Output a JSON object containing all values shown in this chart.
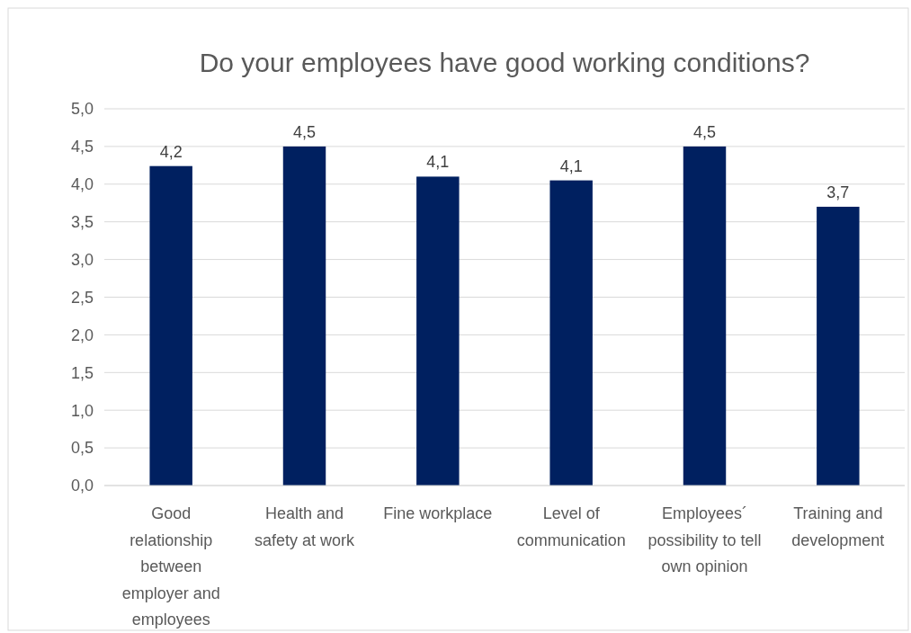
{
  "chart_data": {
    "type": "bar",
    "title": "Do your employees have good working conditions?",
    "categories": [
      "Good relationship between employer and employees",
      "Health and safety at work",
      "Fine workplace",
      "Level of communication",
      "Employees´ possibility to tell own opinion",
      "Training and development"
    ],
    "values": [
      4.24,
      4.5,
      4.1,
      4.05,
      4.5,
      3.7
    ],
    "value_labels": [
      "4,2",
      "4,5",
      "4,1",
      "4,1",
      "4,5",
      "3,7"
    ],
    "color": "#002060",
    "ylim": [
      0,
      5
    ],
    "yticks": [
      {
        "value": 0,
        "label": "0,0"
      },
      {
        "value": 0.5,
        "label": "0,5"
      },
      {
        "value": 1,
        "label": "1,0"
      },
      {
        "value": 1.5,
        "label": "1,5"
      },
      {
        "value": 2,
        "label": "2,0"
      },
      {
        "value": 2.5,
        "label": "2,5"
      },
      {
        "value": 3,
        "label": "3,0"
      },
      {
        "value": 3.5,
        "label": "3,5"
      },
      {
        "value": 4,
        "label": "4,0"
      },
      {
        "value": 4.5,
        "label": "4,5"
      },
      {
        "value": 5,
        "label": "5,0"
      }
    ],
    "grid": "y"
  }
}
